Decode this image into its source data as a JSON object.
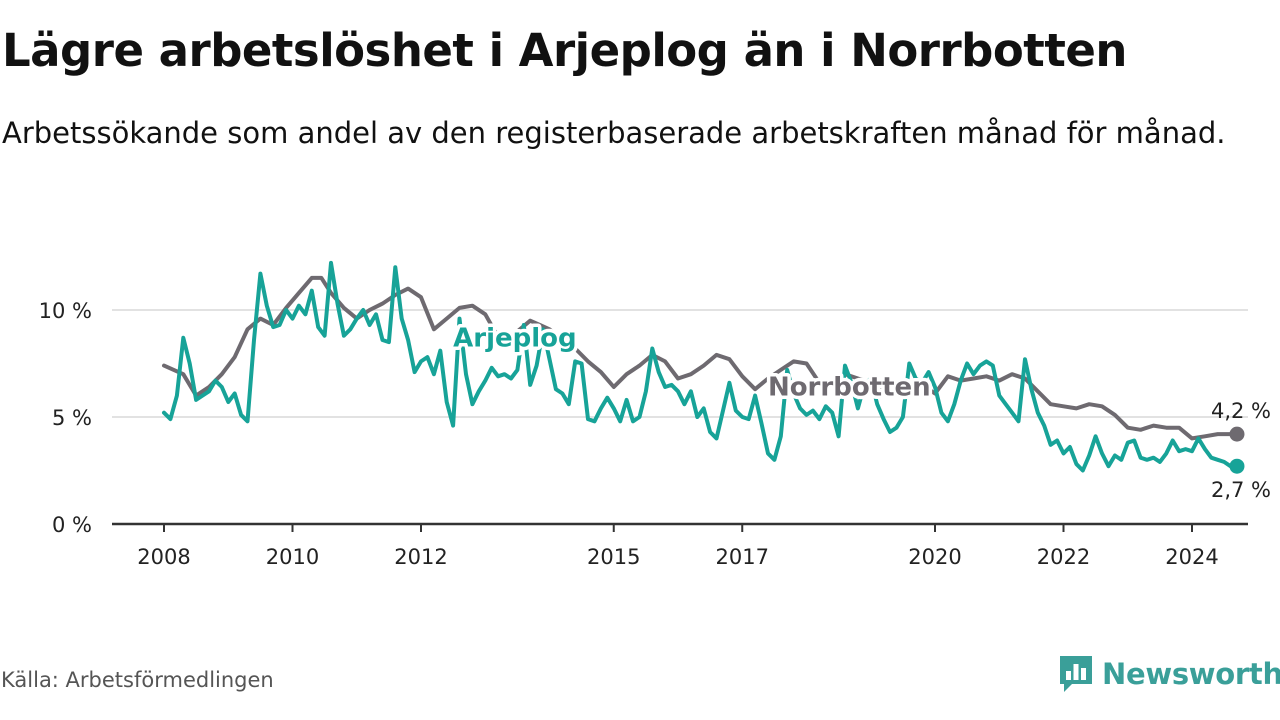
{
  "title": "Lägre arbetslöshet i Arjeplog än i Norrbotten",
  "subtitle": "Arbetssökande som andel av den registerbaserade arbetskraften månad för månad.",
  "source": "Källa: Arbetsförmedlingen",
  "brand": "Newsworthy",
  "colors": {
    "arjeplog": "#17a398",
    "norrbotten": "#6e6a70",
    "brand": "#3a9f99"
  },
  "chart_data": {
    "type": "line",
    "title": "Lägre arbetslöshet i Arjeplog än i Norrbotten",
    "xlabel": "",
    "ylabel": "",
    "xlim": [
      2008,
      2025
    ],
    "ylim": [
      0,
      12.5
    ],
    "x_ticks": [
      {
        "value": 2008,
        "label": "2008"
      },
      {
        "value": 2010,
        "label": "2010"
      },
      {
        "value": 2012,
        "label": "2012"
      },
      {
        "value": 2015,
        "label": "2015"
      },
      {
        "value": 2017,
        "label": "2017"
      },
      {
        "value": 2020,
        "label": "2020"
      },
      {
        "value": 2022,
        "label": "2022"
      },
      {
        "value": 2024,
        "label": "2024"
      }
    ],
    "y_ticks": [
      {
        "value": 0,
        "label": "0 %"
      },
      {
        "value": 5,
        "label": "5 %"
      },
      {
        "value": 10,
        "label": "10 %"
      }
    ],
    "series": [
      {
        "name": "Norrbotten",
        "end_label": "4,2 %",
        "points": [
          [
            2008.0,
            7.4
          ],
          [
            2008.3,
            7.0
          ],
          [
            2008.5,
            6.0
          ],
          [
            2008.7,
            6.4
          ],
          [
            2008.9,
            7.0
          ],
          [
            2009.1,
            7.8
          ],
          [
            2009.3,
            9.1
          ],
          [
            2009.5,
            9.6
          ],
          [
            2009.7,
            9.3
          ],
          [
            2009.9,
            10.1
          ],
          [
            2010.1,
            10.8
          ],
          [
            2010.3,
            11.5
          ],
          [
            2010.45,
            11.5
          ],
          [
            2010.6,
            10.8
          ],
          [
            2010.8,
            10.1
          ],
          [
            2011.0,
            9.6
          ],
          [
            2011.2,
            10.0
          ],
          [
            2011.4,
            10.3
          ],
          [
            2011.6,
            10.7
          ],
          [
            2011.8,
            11.0
          ],
          [
            2012.0,
            10.6
          ],
          [
            2012.2,
            9.1
          ],
          [
            2012.4,
            9.6
          ],
          [
            2012.6,
            10.1
          ],
          [
            2012.8,
            10.2
          ],
          [
            2013.0,
            9.8
          ],
          [
            2013.15,
            9.0
          ],
          [
            2013.3,
            8.6
          ],
          [
            2013.5,
            9.0
          ],
          [
            2013.7,
            9.5
          ],
          [
            2013.85,
            9.3
          ],
          [
            2014.0,
            9.1
          ],
          [
            2014.2,
            8.6
          ],
          [
            2014.4,
            8.2
          ],
          [
            2014.6,
            7.6
          ],
          [
            2014.8,
            7.1
          ],
          [
            2015.0,
            6.4
          ],
          [
            2015.2,
            7.0
          ],
          [
            2015.4,
            7.4
          ],
          [
            2015.6,
            7.9
          ],
          [
            2015.8,
            7.6
          ],
          [
            2016.0,
            6.8
          ],
          [
            2016.2,
            7.0
          ],
          [
            2016.4,
            7.4
          ],
          [
            2016.6,
            7.9
          ],
          [
            2016.8,
            7.7
          ],
          [
            2017.0,
            6.9
          ],
          [
            2017.2,
            6.3
          ],
          [
            2017.4,
            6.8
          ],
          [
            2017.6,
            7.2
          ],
          [
            2017.8,
            7.6
          ],
          [
            2018.0,
            7.5
          ],
          [
            2018.2,
            6.6
          ],
          [
            2018.4,
            6.7
          ],
          [
            2018.6,
            7.0
          ],
          [
            2018.8,
            6.8
          ],
          [
            2019.0,
            6.6
          ],
          [
            2019.2,
            6.2
          ],
          [
            2019.4,
            6.1
          ],
          [
            2019.6,
            6.3
          ],
          [
            2019.8,
            6.5
          ],
          [
            2020.0,
            6.1
          ],
          [
            2020.2,
            6.9
          ],
          [
            2020.4,
            6.7
          ],
          [
            2020.6,
            6.8
          ],
          [
            2020.8,
            6.9
          ],
          [
            2021.0,
            6.7
          ],
          [
            2021.2,
            7.0
          ],
          [
            2021.4,
            6.8
          ],
          [
            2021.6,
            6.2
          ],
          [
            2021.8,
            5.6
          ],
          [
            2022.0,
            5.5
          ],
          [
            2022.2,
            5.4
          ],
          [
            2022.4,
            5.6
          ],
          [
            2022.6,
            5.5
          ],
          [
            2022.8,
            5.1
          ],
          [
            2023.0,
            4.5
          ],
          [
            2023.2,
            4.4
          ],
          [
            2023.4,
            4.6
          ],
          [
            2023.6,
            4.5
          ],
          [
            2023.8,
            4.5
          ],
          [
            2024.0,
            4.0
          ],
          [
            2024.2,
            4.1
          ],
          [
            2024.4,
            4.2
          ],
          [
            2024.6,
            4.2
          ],
          [
            2024.7,
            4.2
          ]
        ]
      },
      {
        "name": "Arjeplog",
        "end_label": "2,7 %",
        "points": [
          [
            2008.0,
            5.2
          ],
          [
            2008.1,
            4.9
          ],
          [
            2008.2,
            6.0
          ],
          [
            2008.3,
            8.7
          ],
          [
            2008.4,
            7.5
          ],
          [
            2008.5,
            5.8
          ],
          [
            2008.6,
            6.0
          ],
          [
            2008.7,
            6.2
          ],
          [
            2008.8,
            6.7
          ],
          [
            2008.9,
            6.4
          ],
          [
            2009.0,
            5.7
          ],
          [
            2009.1,
            6.1
          ],
          [
            2009.2,
            5.1
          ],
          [
            2009.3,
            4.8
          ],
          [
            2009.4,
            8.6
          ],
          [
            2009.5,
            11.7
          ],
          [
            2009.6,
            10.2
          ],
          [
            2009.7,
            9.2
          ],
          [
            2009.8,
            9.3
          ],
          [
            2009.9,
            10.0
          ],
          [
            2010.0,
            9.6
          ],
          [
            2010.1,
            10.2
          ],
          [
            2010.2,
            9.8
          ],
          [
            2010.3,
            10.9
          ],
          [
            2010.4,
            9.2
          ],
          [
            2010.5,
            8.8
          ],
          [
            2010.6,
            12.2
          ],
          [
            2010.7,
            10.3
          ],
          [
            2010.8,
            8.8
          ],
          [
            2010.9,
            9.1
          ],
          [
            2011.0,
            9.6
          ],
          [
            2011.1,
            10.0
          ],
          [
            2011.2,
            9.3
          ],
          [
            2011.3,
            9.8
          ],
          [
            2011.4,
            8.6
          ],
          [
            2011.5,
            8.5
          ],
          [
            2011.6,
            12.0
          ],
          [
            2011.7,
            9.6
          ],
          [
            2011.8,
            8.6
          ],
          [
            2011.9,
            7.1
          ],
          [
            2012.0,
            7.6
          ],
          [
            2012.1,
            7.8
          ],
          [
            2012.2,
            7.0
          ],
          [
            2012.3,
            8.1
          ],
          [
            2012.4,
            5.7
          ],
          [
            2012.5,
            4.6
          ],
          [
            2012.6,
            9.6
          ],
          [
            2012.7,
            7.0
          ],
          [
            2012.8,
            5.6
          ],
          [
            2012.9,
            6.2
          ],
          [
            2013.0,
            6.7
          ],
          [
            2013.1,
            7.3
          ],
          [
            2013.2,
            6.9
          ],
          [
            2013.3,
            7.0
          ],
          [
            2013.4,
            6.8
          ],
          [
            2013.5,
            7.2
          ],
          [
            2013.6,
            9.3
          ],
          [
            2013.7,
            6.5
          ],
          [
            2013.8,
            7.4
          ],
          [
            2013.9,
            9.1
          ],
          [
            2014.0,
            7.7
          ],
          [
            2014.1,
            6.3
          ],
          [
            2014.2,
            6.1
          ],
          [
            2014.3,
            5.6
          ],
          [
            2014.4,
            7.6
          ],
          [
            2014.5,
            7.5
          ],
          [
            2014.6,
            4.9
          ],
          [
            2014.7,
            4.8
          ],
          [
            2014.8,
            5.4
          ],
          [
            2014.9,
            5.9
          ],
          [
            2015.0,
            5.4
          ],
          [
            2015.1,
            4.8
          ],
          [
            2015.2,
            5.8
          ],
          [
            2015.3,
            4.8
          ],
          [
            2015.4,
            5.0
          ],
          [
            2015.5,
            6.2
          ],
          [
            2015.6,
            8.2
          ],
          [
            2015.7,
            7.1
          ],
          [
            2015.8,
            6.4
          ],
          [
            2015.9,
            6.5
          ],
          [
            2016.0,
            6.2
          ],
          [
            2016.1,
            5.6
          ],
          [
            2016.2,
            6.2
          ],
          [
            2016.3,
            5.0
          ],
          [
            2016.4,
            5.4
          ],
          [
            2016.5,
            4.3
          ],
          [
            2016.6,
            4.0
          ],
          [
            2016.7,
            5.3
          ],
          [
            2016.8,
            6.6
          ],
          [
            2016.9,
            5.3
          ],
          [
            2017.0,
            5.0
          ],
          [
            2017.1,
            4.9
          ],
          [
            2017.2,
            6.0
          ],
          [
            2017.3,
            4.7
          ],
          [
            2017.4,
            3.3
          ],
          [
            2017.5,
            3.0
          ],
          [
            2017.6,
            4.1
          ],
          [
            2017.7,
            7.2
          ],
          [
            2017.8,
            6.1
          ],
          [
            2017.9,
            5.4
          ],
          [
            2018.0,
            5.1
          ],
          [
            2018.1,
            5.3
          ],
          [
            2018.2,
            4.9
          ],
          [
            2018.3,
            5.5
          ],
          [
            2018.4,
            5.2
          ],
          [
            2018.5,
            4.1
          ],
          [
            2018.6,
            7.4
          ],
          [
            2018.7,
            6.6
          ],
          [
            2018.8,
            5.4
          ],
          [
            2018.9,
            6.5
          ],
          [
            2019.0,
            6.8
          ],
          [
            2019.1,
            5.6
          ],
          [
            2019.2,
            4.9
          ],
          [
            2019.3,
            4.3
          ],
          [
            2019.4,
            4.5
          ],
          [
            2019.5,
            5.0
          ],
          [
            2019.6,
            7.5
          ],
          [
            2019.7,
            6.8
          ],
          [
            2019.8,
            6.6
          ],
          [
            2019.9,
            7.1
          ],
          [
            2020.0,
            6.4
          ],
          [
            2020.1,
            5.2
          ],
          [
            2020.2,
            4.8
          ],
          [
            2020.3,
            5.6
          ],
          [
            2020.4,
            6.7
          ],
          [
            2020.5,
            7.5
          ],
          [
            2020.6,
            7.0
          ],
          [
            2020.7,
            7.4
          ],
          [
            2020.8,
            7.6
          ],
          [
            2020.9,
            7.4
          ],
          [
            2021.0,
            6.0
          ],
          [
            2021.1,
            5.6
          ],
          [
            2021.2,
            5.2
          ],
          [
            2021.3,
            4.8
          ],
          [
            2021.4,
            7.7
          ],
          [
            2021.5,
            6.3
          ],
          [
            2021.6,
            5.2
          ],
          [
            2021.7,
            4.6
          ],
          [
            2021.8,
            3.7
          ],
          [
            2021.9,
            3.9
          ],
          [
            2022.0,
            3.3
          ],
          [
            2022.1,
            3.6
          ],
          [
            2022.2,
            2.8
          ],
          [
            2022.3,
            2.5
          ],
          [
            2022.4,
            3.2
          ],
          [
            2022.5,
            4.1
          ],
          [
            2022.6,
            3.3
          ],
          [
            2022.7,
            2.7
          ],
          [
            2022.8,
            3.2
          ],
          [
            2022.9,
            3.0
          ],
          [
            2023.0,
            3.8
          ],
          [
            2023.1,
            3.9
          ],
          [
            2023.2,
            3.1
          ],
          [
            2023.3,
            3.0
          ],
          [
            2023.4,
            3.1
          ],
          [
            2023.5,
            2.9
          ],
          [
            2023.6,
            3.3
          ],
          [
            2023.7,
            3.9
          ],
          [
            2023.8,
            3.4
          ],
          [
            2023.9,
            3.5
          ],
          [
            2024.0,
            3.4
          ],
          [
            2024.1,
            4.0
          ],
          [
            2024.2,
            3.5
          ],
          [
            2024.3,
            3.1
          ],
          [
            2024.4,
            3.0
          ],
          [
            2024.5,
            2.9
          ],
          [
            2024.6,
            2.7
          ],
          [
            2024.7,
            2.7
          ]
        ]
      }
    ],
    "annotations": [
      {
        "text": "Arjeplog",
        "series": "Arjeplog",
        "x": 2012.5,
        "y": 8.3
      },
      {
        "text": "Norrbotten",
        "series": "Norrbotten",
        "x": 2017.4,
        "y": 6.0
      }
    ]
  }
}
